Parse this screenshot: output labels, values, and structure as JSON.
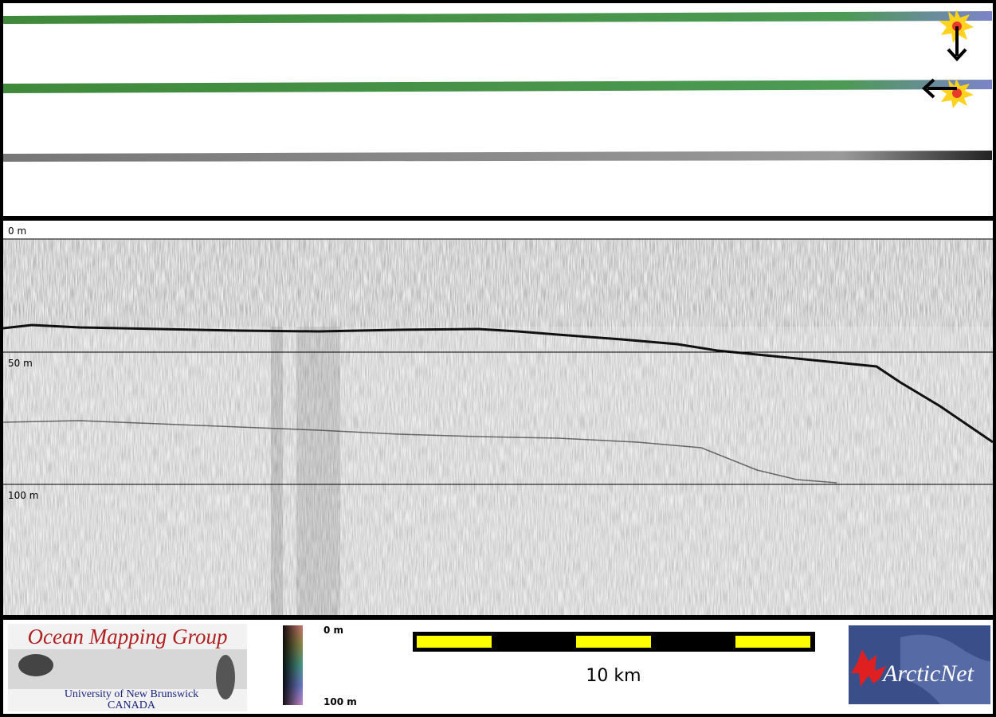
{
  "profile": {
    "depth_labels": [
      "0 m",
      "50 m",
      "100 m"
    ]
  },
  "colorbar": {
    "top_label": "0 m",
    "bottom_label": "100 m"
  },
  "scale_bar": {
    "label": "10 km"
  },
  "logos": {
    "omg_title": "Ocean Mapping Group",
    "omg_university": "University of New Brunswick",
    "omg_country": "CANADA",
    "arcticnet": "ArcticNet"
  }
}
